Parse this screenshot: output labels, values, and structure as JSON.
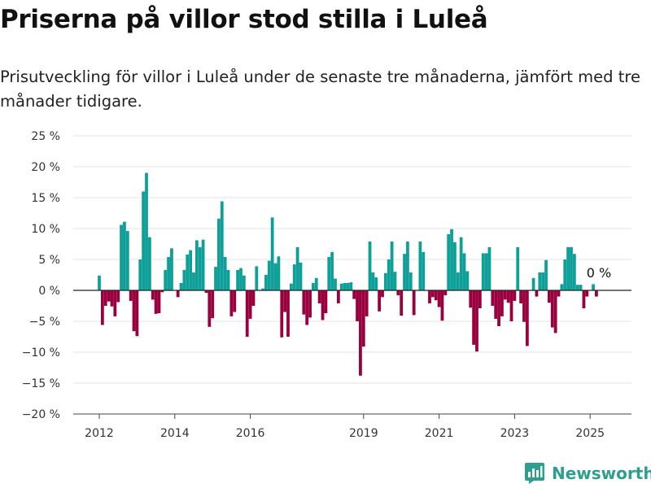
{
  "title": "Priserna på villor stod stilla i Luleå",
  "subtitle": "Prisutveckling för villor i Luleå under de senaste tre månaderna, jämfört med tre månader tidigare.",
  "brand": {
    "name": "Newsworthy",
    "icon": "newsworthy-logo-icon"
  },
  "colors": {
    "positive": "#0e9f99",
    "negative": "#99003d",
    "baseline": "#222222",
    "grid": "#e3e3e3"
  },
  "chart_data": {
    "type": "bar",
    "title": "",
    "xlabel": "",
    "ylabel": "",
    "ylim": [
      -20,
      25
    ],
    "y_ticks": [
      25,
      20,
      15,
      10,
      5,
      0,
      -5,
      -10,
      -15,
      -20
    ],
    "y_tick_labels": [
      "25 %",
      "20 %",
      "15 %",
      "10 %",
      "5 %",
      "0 %",
      "−5 %",
      "−10 %",
      "−15 %",
      "−20 %"
    ],
    "x_ticks": [
      2012,
      2014,
      2016,
      2019,
      2021,
      2023,
      2025
    ],
    "x_tick_labels": [
      "2012",
      "2014",
      "2016",
      "2019",
      "2021",
      "2023",
      "2025"
    ],
    "x_start": 2012.0,
    "x_step": 0.08333,
    "grid": true,
    "last_value_label": "0 %",
    "values": [
      2.4,
      -5.6,
      -2.5,
      -1.8,
      -2.6,
      -4.2,
      -1.9,
      10.6,
      11.1,
      9.6,
      -1.7,
      -6.6,
      -7.4,
      5.0,
      16.0,
      19.0,
      8.6,
      -1.5,
      -3.8,
      -3.7,
      -0.3,
      3.3,
      5.4,
      6.8,
      0.0,
      -1.1,
      1.2,
      3.3,
      5.8,
      6.5,
      2.9,
      8.1,
      7.0,
      8.2,
      -0.4,
      -5.9,
      -4.5,
      3.8,
      11.6,
      14.4,
      5.4,
      3.3,
      -4.2,
      -3.5,
      3.3,
      3.6,
      2.4,
      -7.5,
      -4.6,
      -2.5,
      3.9,
      0.0,
      0.3,
      2.5,
      4.8,
      11.8,
      4.4,
      5.5,
      -7.6,
      -3.5,
      -7.5,
      1.1,
      4.2,
      7.0,
      4.5,
      -3.9,
      -5.6,
      -4.4,
      1.2,
      2.0,
      -2.1,
      -4.8,
      -3.7,
      5.4,
      6.2,
      1.9,
      -2.1,
      1.1,
      1.2,
      1.2,
      1.3,
      -1.4,
      -5.0,
      -13.8,
      -9.1,
      -4.2,
      7.9,
      2.9,
      2.1,
      -3.4,
      -1.1,
      2.8,
      5.0,
      7.9,
      3.0,
      -0.8,
      -4.1,
      5.9,
      7.9,
      2.9,
      -4.0,
      0.0,
      7.9,
      6.2,
      0.0,
      -2.1,
      -1.1,
      -1.6,
      -2.7,
      -4.9,
      -0.8,
      9.1,
      9.9,
      7.8,
      2.9,
      8.6,
      6.0,
      3.1,
      -2.8,
      -8.8,
      -9.9,
      -2.9,
      6.0,
      6.0,
      7.0,
      -2.5,
      -4.6,
      -5.8,
      -4.2,
      -1.5,
      -2.0,
      -5.0,
      -1.7,
      7.0,
      -2.1,
      -5.1,
      -9.0,
      0.0,
      2.0,
      -1.0,
      2.9,
      2.9,
      4.9,
      -2.0,
      -6.0,
      -6.9,
      -1.0,
      1.0,
      5.0,
      7.0,
      7.0,
      5.9,
      0.9,
      0.9,
      -2.9,
      -1.0,
      0.0,
      1.0,
      -1.0,
      0.0
    ]
  }
}
